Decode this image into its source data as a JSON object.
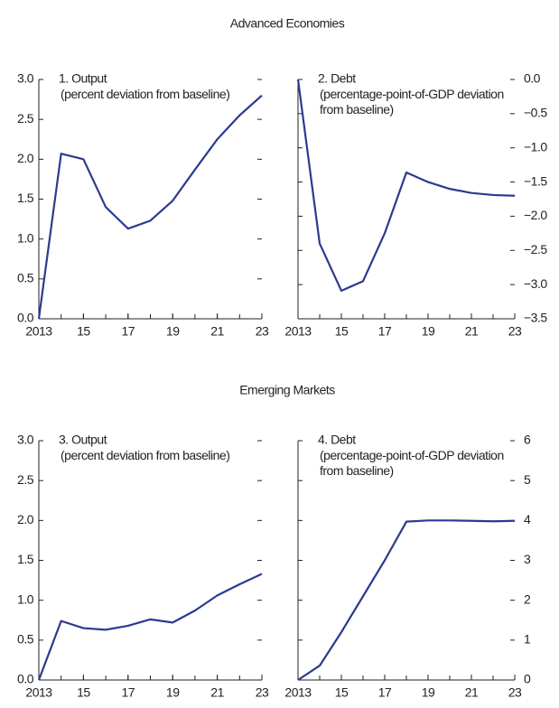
{
  "section_titles": [
    "Advanced Economies",
    "Emerging Markets"
  ],
  "chart_data": [
    {
      "type": "line",
      "title": "1. Output",
      "subtitle": "(percent deviation from baseline)",
      "x": [
        2013,
        2014,
        2015,
        2016,
        2017,
        2018,
        2019,
        2020,
        2021,
        2022,
        2023
      ],
      "series": [
        {
          "color": "#2b3a8f",
          "values": [
            0,
            2.07,
            2.0,
            1.4,
            1.13,
            1.23,
            1.48,
            1.87,
            2.25,
            2.55,
            2.8
          ]
        }
      ],
      "xlim": [
        2013,
        2023
      ],
      "xticks": [
        {
          "value": 2013,
          "label": "2013"
        },
        {
          "value": 2015,
          "label": "15"
        },
        {
          "value": 2017,
          "label": "17"
        },
        {
          "value": 2019,
          "label": "19"
        },
        {
          "value": 2021,
          "label": "21"
        },
        {
          "value": 2023,
          "label": "23"
        }
      ],
      "ylim": [
        0,
        3
      ],
      "yticks": [
        {
          "value": 0,
          "label": "0.0"
        },
        0.5,
        {
          "value": 1,
          "label": "1.0"
        },
        1.5,
        {
          "value": 2,
          "label": "2.0"
        },
        2.5,
        {
          "value": 3,
          "label": "3.0"
        }
      ],
      "y_axis_side": "left"
    },
    {
      "type": "line",
      "title": "2. Debt",
      "subtitle": "(percentage-point-of-GDP deviation from baseline)",
      "x": [
        2013,
        2014,
        2015,
        2016,
        2017,
        2018,
        2019,
        2020,
        2021,
        2022,
        2023
      ],
      "series": [
        {
          "color": "#2b3a8f",
          "values": [
            0,
            -2.4,
            -3.09,
            -2.95,
            -2.25,
            -1.36,
            -1.5,
            -1.6,
            -1.66,
            -1.69,
            -1.7
          ]
        }
      ],
      "xlim": [
        2013,
        2023
      ],
      "xticks": [
        {
          "value": 2013,
          "label": "2013"
        },
        {
          "value": 2015,
          "label": "15"
        },
        {
          "value": 2017,
          "label": "17"
        },
        {
          "value": 2019,
          "label": "19"
        },
        {
          "value": 2021,
          "label": "21"
        },
        {
          "value": 2023,
          "label": "23"
        }
      ],
      "ylim": [
        -3.5,
        0
      ],
      "yticks": [
        {
          "value": -3.5,
          "label": "−3.5"
        },
        {
          "value": -3,
          "label": "−3.0"
        },
        {
          "value": -2.5,
          "label": "−2.5"
        },
        {
          "value": -2,
          "label": "−2.0"
        },
        {
          "value": -1.5,
          "label": "−1.5"
        },
        {
          "value": -1,
          "label": "−1.0"
        },
        {
          "value": -0.5,
          "label": "−0.5"
        },
        {
          "value": 0,
          "label": "0.0"
        }
      ],
      "y_axis_side": "right"
    },
    {
      "type": "line",
      "title": "3. Output",
      "subtitle": "(percent deviation from baseline)",
      "x": [
        2013,
        2014,
        2015,
        2016,
        2017,
        2018,
        2019,
        2020,
        2021,
        2022,
        2023
      ],
      "series": [
        {
          "color": "#2b3a8f",
          "values": [
            0,
            0.74,
            0.65,
            0.63,
            0.68,
            0.76,
            0.72,
            0.87,
            1.06,
            1.2,
            1.33
          ]
        }
      ],
      "xlim": [
        2013,
        2023
      ],
      "xticks": [
        {
          "value": 2013,
          "label": "2013"
        },
        {
          "value": 2015,
          "label": "15"
        },
        {
          "value": 2017,
          "label": "17"
        },
        {
          "value": 2019,
          "label": "19"
        },
        {
          "value": 2021,
          "label": "21"
        },
        {
          "value": 2023,
          "label": "23"
        }
      ],
      "ylim": [
        0,
        3
      ],
      "yticks": [
        {
          "value": 0,
          "label": "0.0"
        },
        0.5,
        {
          "value": 1,
          "label": "1.0"
        },
        1.5,
        {
          "value": 2,
          "label": "2.0"
        },
        2.5,
        {
          "value": 3,
          "label": "3.0"
        }
      ],
      "y_axis_side": "left"
    },
    {
      "type": "line",
      "title": "4. Debt",
      "subtitle": "(percentage-point-of-GDP deviation from baseline)",
      "x": [
        2013,
        2014,
        2015,
        2016,
        2017,
        2018,
        2019,
        2020,
        2021,
        2022,
        2023
      ],
      "series": [
        {
          "color": "#2b3a8f",
          "values": [
            0,
            0.36,
            1.2,
            2.1,
            3.0,
            3.97,
            4.0,
            4.0,
            3.99,
            3.98,
            3.99
          ]
        }
      ],
      "xlim": [
        2013,
        2023
      ],
      "xticks": [
        {
          "value": 2013,
          "label": "2013"
        },
        {
          "value": 2015,
          "label": "15"
        },
        {
          "value": 2017,
          "label": "17"
        },
        {
          "value": 2019,
          "label": "19"
        },
        {
          "value": 2021,
          "label": "21"
        },
        {
          "value": 2023,
          "label": "23"
        }
      ],
      "ylim": [
        0,
        6
      ],
      "yticks": [
        0,
        1,
        2,
        3,
        4,
        5,
        6
      ],
      "y_axis_side": "right"
    }
  ]
}
